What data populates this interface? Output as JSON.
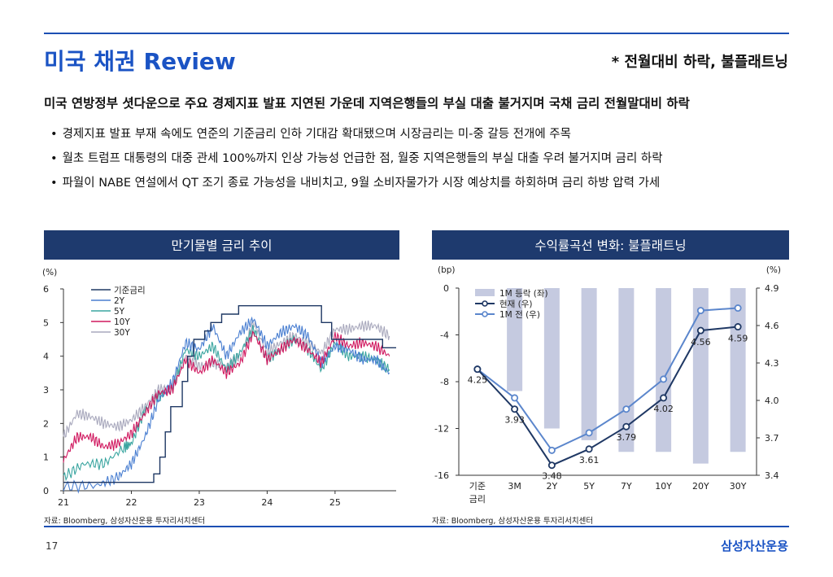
{
  "header": {
    "title": "미국 채권 Review",
    "subnote": "* 전월대비 하락, 불플래트닝"
  },
  "headline": "미국 연방정부 셧다운으로 주요 경제지표 발표 지연된 가운데 지역은행들의 부실 대출 불거지며 국채 금리 전월말대비 하락",
  "bullets": [
    "경제지표 발표 부재 속에도 연준의 기준금리 인하 기대감 확대됐으며 시장금리는 미-중 갈등 전개에 주목",
    "월초 트럼프 대통령의 대중 관세 100%까지 인상 가능성 언급한 점, 월중 지역은행들의 부실 대출 우려 불거지며 금리 하락",
    "파월이 NABE 연설에서 QT 조기 종료 가능성을 내비치고, 9월 소비자물가가 시장 예상치를 하회하며 금리 하방 압력 가세"
  ],
  "footer": {
    "page": "17",
    "brand": "삼성자산운용"
  },
  "chart_data": [
    {
      "type": "line",
      "panel_title": "만기물별 금리 추이",
      "y_unit": "(%)",
      "ylim": [
        0,
        6
      ],
      "y_ticks": [
        0,
        1,
        2,
        3,
        4,
        5,
        6
      ],
      "xlim": [
        21,
        25.9
      ],
      "x_ticks": [
        21,
        22,
        23,
        24,
        25
      ],
      "x_tick_labels": [
        "21",
        "22",
        "23",
        "24",
        "25"
      ],
      "source": "자료: Bloomberg, 삼성자산운용 투자리서치센터",
      "colors": {
        "policy": "#1f3864",
        "2Y": "#4a7fd1",
        "5Y": "#3aa5a0",
        "10Y": "#d0185f",
        "30Y": "#a9a9bd"
      },
      "series": [
        {
          "name": "기준금리",
          "key": "policy",
          "x": [
            21,
            22.2,
            22.33,
            22.42,
            22.5,
            22.58,
            22.75,
            22.83,
            22.92,
            23.08,
            23.17,
            23.33,
            23.58,
            24.7,
            24.8,
            24.95,
            25.7,
            25.9
          ],
          "values": [
            0.25,
            0.25,
            0.5,
            1.0,
            1.75,
            2.5,
            3.25,
            4.0,
            4.5,
            4.75,
            5.0,
            5.25,
            5.5,
            5.5,
            5.0,
            4.5,
            4.25,
            4.25
          ]
        },
        {
          "name": "2Y",
          "key": "2Y",
          "x": [
            21,
            21.5,
            21.8,
            22,
            22.2,
            22.4,
            22.6,
            22.8,
            23,
            23.2,
            23.4,
            23.6,
            23.8,
            24,
            24.2,
            24.4,
            24.6,
            24.8,
            25,
            25.2,
            25.4,
            25.6,
            25.8
          ],
          "values": [
            0.12,
            0.16,
            0.4,
            0.8,
            1.6,
            2.7,
            3.2,
            4.4,
            4.2,
            4.9,
            4.0,
            4.7,
            5.1,
            4.3,
            4.7,
            4.9,
            4.6,
            3.8,
            4.3,
            4.2,
            3.9,
            3.9,
            3.5
          ]
        },
        {
          "name": "5Y",
          "key": "5Y",
          "x": [
            21,
            21.3,
            21.6,
            21.9,
            22,
            22.2,
            22.4,
            22.6,
            22.8,
            23,
            23.2,
            23.4,
            23.6,
            23.8,
            24,
            24.2,
            24.4,
            24.6,
            24.8,
            25,
            25.2,
            25.4,
            25.6,
            25.8
          ],
          "values": [
            0.4,
            0.8,
            0.8,
            1.3,
            1.4,
            2.4,
            2.8,
            3.0,
            4.2,
            4.0,
            4.3,
            3.6,
            4.1,
            4.8,
            3.9,
            4.2,
            4.5,
            4.2,
            3.6,
            4.4,
            4.0,
            4.0,
            3.9,
            3.6
          ]
        },
        {
          "name": "10Y",
          "key": "10Y",
          "x": [
            21,
            21.2,
            21.4,
            21.6,
            21.8,
            22,
            22.2,
            22.4,
            22.6,
            22.8,
            23,
            23.2,
            23.4,
            23.6,
            23.8,
            24,
            24.2,
            24.4,
            24.6,
            24.8,
            25,
            25.2,
            25.4,
            25.6,
            25.8
          ],
          "values": [
            0.9,
            1.6,
            1.6,
            1.3,
            1.4,
            1.7,
            2.3,
            2.9,
            3.0,
            3.9,
            3.5,
            3.9,
            3.5,
            3.8,
            4.7,
            3.9,
            4.2,
            4.5,
            4.2,
            3.8,
            4.6,
            4.3,
            4.4,
            4.3,
            4.0
          ]
        },
        {
          "name": "30Y",
          "key": "30Y",
          "x": [
            21,
            21.2,
            21.4,
            21.6,
            21.8,
            22,
            22.2,
            22.4,
            22.6,
            22.8,
            23,
            23.2,
            23.4,
            23.6,
            23.8,
            24,
            24.2,
            24.4,
            24.6,
            24.8,
            25,
            25.2,
            25.4,
            25.6,
            25.8
          ],
          "values": [
            1.6,
            2.3,
            2.2,
            2.0,
            1.9,
            2.1,
            2.5,
            3.0,
            3.1,
            4.0,
            3.7,
            3.8,
            3.7,
            4.0,
            5.0,
            4.1,
            4.4,
            4.6,
            4.4,
            4.1,
            4.8,
            4.8,
            4.9,
            4.9,
            4.6
          ]
        }
      ]
    },
    {
      "type": "bar+line",
      "panel_title": "수익률곡선 변화: 불플래트닝",
      "left_unit": "(bp)",
      "right_unit": "(%)",
      "categories": [
        "기준 금리",
        "3M",
        "2Y",
        "5Y",
        "7Y",
        "10Y",
        "20Y",
        "30Y"
      ],
      "category_labels_line1": [
        "기준",
        "3M",
        "2Y",
        "5Y",
        "7Y",
        "10Y",
        "20Y",
        "30Y"
      ],
      "category_labels_line2": [
        "금리",
        "",
        "",
        "",
        "",
        "",
        "",
        ""
      ],
      "left_ylim": [
        -16,
        0
      ],
      "left_ticks": [
        0,
        -4,
        -8,
        -12,
        -16
      ],
      "right_ylim": [
        3.4,
        4.9
      ],
      "right_ticks": [
        4.9,
        4.6,
        4.3,
        4.0,
        3.7,
        3.4
      ],
      "right_tick_labels": [
        "4.9",
        "4.6",
        "4.3",
        "4.0",
        "3.7",
        "3.4"
      ],
      "source": "자료: Bloomberg, 삼성자산운용 투자리서치센터",
      "colors": {
        "bar": "#c5cae0",
        "current": "#1f3864",
        "prev": "#5b86cc"
      },
      "series": [
        {
          "name": "1M 등락 (좌)",
          "axis": "left",
          "kind": "bar",
          "values": [
            0,
            -8.8,
            -12,
            -13,
            -14,
            -14,
            -15,
            -14
          ]
        },
        {
          "name": "현재 (우)",
          "axis": "right",
          "kind": "line",
          "values": [
            4.25,
            3.93,
            3.48,
            3.61,
            3.79,
            4.02,
            4.56,
            4.59
          ]
        },
        {
          "name": "1M 전 (우)",
          "axis": "right",
          "kind": "line",
          "values": [
            4.25,
            4.02,
            3.6,
            3.74,
            3.93,
            4.17,
            4.72,
            4.74
          ]
        }
      ],
      "data_labels": [
        {
          "cat": 0,
          "value": "4.25"
        },
        {
          "cat": 1,
          "value": "3.93"
        },
        {
          "cat": 2,
          "value": "3.48"
        },
        {
          "cat": 3,
          "value": "3.61"
        },
        {
          "cat": 4,
          "value": "3.79"
        },
        {
          "cat": 5,
          "value": "4.02"
        },
        {
          "cat": 6,
          "value": "4.56"
        },
        {
          "cat": 7,
          "value": "4.59"
        }
      ]
    }
  ]
}
